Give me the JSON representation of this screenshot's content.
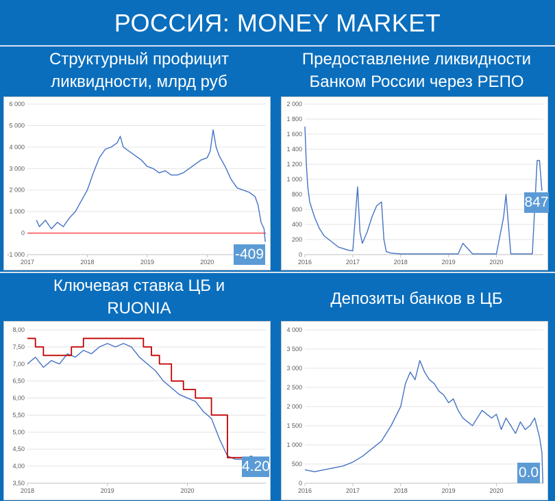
{
  "title": "РОССИЯ: MONEY MARKET",
  "colors": {
    "background": "#0a6ebd",
    "series": "#4472c4",
    "rate_line": "#c00000",
    "zero_line": "#ff0000",
    "badge": "#5b9bd5"
  },
  "panels": [
    {
      "title_line1": "Структурный профицит",
      "title_line2": "ликвидности, млрд руб",
      "badge": "-409"
    },
    {
      "title_line1": "Предоставление ликвидности",
      "title_line2": "Банком России через РЕПО",
      "badge": "847"
    },
    {
      "title_line1": "Ключевая ставка ЦБ и",
      "title_line2": "RUONIA",
      "badge": "4.20"
    },
    {
      "title_line1": "Депозиты банков в ЦБ",
      "title_line2": "",
      "badge": "0.0"
    }
  ],
  "chart_data": [
    {
      "type": "line",
      "xlim": [
        2017.0,
        2020.98
      ],
      "ylim": [
        -1000,
        6000
      ],
      "yticks": [
        "-1 000",
        "0",
        "1 000",
        "2 000",
        "3 000",
        "4 000",
        "5 000",
        "6 000"
      ],
      "xticks": [
        "2017",
        "2018",
        "2019",
        "2020"
      ],
      "reference_line": 0,
      "series": [
        {
          "x": [
            2017.15,
            2017.2,
            2017.3,
            2017.4,
            2017.5,
            2017.6,
            2017.7,
            2017.8,
            2017.9,
            2018.0,
            2018.05,
            2018.1,
            2018.2,
            2018.25,
            2018.3,
            2018.4,
            2018.5,
            2018.55,
            2018.6,
            2018.7,
            2018.8,
            2018.9,
            2019.0,
            2019.1,
            2019.2,
            2019.3,
            2019.4,
            2019.5,
            2019.6,
            2019.7,
            2019.8,
            2019.9,
            2020.0,
            2020.05,
            2020.1,
            2020.15,
            2020.2,
            2020.3,
            2020.4,
            2020.5,
            2020.6,
            2020.7,
            2020.75,
            2020.8,
            2020.85,
            2020.9,
            2020.95,
            2020.97
          ],
          "y": [
            600,
            300,
            600,
            200,
            500,
            300,
            700,
            1000,
            1500,
            2000,
            2400,
            2800,
            3500,
            3700,
            3900,
            4000,
            4200,
            4500,
            4000,
            3800,
            3600,
            3400,
            3100,
            3000,
            2800,
            2900,
            2700,
            2700,
            2800,
            3000,
            3200,
            3400,
            3500,
            3800,
            4800,
            4000,
            3600,
            3100,
            2500,
            2100,
            2000,
            1900,
            1800,
            1700,
            1300,
            500,
            200,
            -409
          ]
        }
      ]
    },
    {
      "type": "line",
      "xlim": [
        2016.0,
        2020.98
      ],
      "ylim": [
        0,
        2000
      ],
      "yticks": [
        "0",
        "200",
        "400",
        "600",
        "800",
        "1 000",
        "1 200",
        "1 400",
        "1 600",
        "1 800",
        "2 000"
      ],
      "xticks": [
        "2016",
        "2017",
        "2018",
        "2019",
        "2020"
      ],
      "series": [
        {
          "x": [
            2016.0,
            2016.03,
            2016.06,
            2016.1,
            2016.2,
            2016.3,
            2016.4,
            2016.5,
            2016.6,
            2016.7,
            2016.8,
            2016.9,
            2017.0,
            2017.1,
            2017.15,
            2017.2,
            2017.3,
            2017.4,
            2017.5,
            2017.6,
            2017.65,
            2017.7,
            2017.8,
            2018.0,
            2018.5,
            2019.0,
            2019.2,
            2019.3,
            2019.5,
            2020.0,
            2020.15,
            2020.2,
            2020.25,
            2020.3,
            2020.4,
            2020.5,
            2020.6,
            2020.7,
            2020.75,
            2020.8,
            2020.85,
            2020.9,
            2020.95
          ],
          "y": [
            1700,
            1200,
            900,
            700,
            500,
            350,
            250,
            200,
            150,
            100,
            80,
            60,
            50,
            900,
            300,
            150,
            300,
            500,
            650,
            700,
            200,
            40,
            20,
            10,
            10,
            10,
            10,
            150,
            10,
            10,
            500,
            800,
            400,
            10,
            10,
            10,
            10,
            10,
            10,
            620,
            1250,
            1250,
            847
          ]
        }
      ]
    },
    {
      "type": "line",
      "xlim": [
        2018.0,
        2020.98
      ],
      "ylim": [
        3.5,
        8.0
      ],
      "yticks": [
        "3,50",
        "4,00",
        "4,50",
        "5,00",
        "5,50",
        "6,00",
        "6,50",
        "7,00",
        "7,50",
        "8,00"
      ],
      "xticks": [
        "2018",
        "2019",
        "2020"
      ],
      "series": [
        {
          "x": [
            2018.0,
            2018.1,
            2018.2,
            2018.3,
            2018.4,
            2018.5,
            2018.6,
            2018.7,
            2018.8,
            2018.9,
            2019.0,
            2019.1,
            2019.2,
            2019.3,
            2019.4,
            2019.5,
            2019.6,
            2019.7,
            2019.8,
            2019.9,
            2020.0,
            2020.1,
            2020.2,
            2020.3,
            2020.4,
            2020.5,
            2020.6,
            2020.7,
            2020.8,
            2020.9,
            2020.95
          ],
          "y": [
            7.0,
            7.2,
            6.9,
            7.1,
            7.0,
            7.3,
            7.2,
            7.4,
            7.3,
            7.5,
            7.6,
            7.5,
            7.6,
            7.5,
            7.2,
            7.0,
            6.8,
            6.5,
            6.3,
            6.1,
            6.0,
            5.9,
            5.6,
            5.4,
            4.8,
            4.3,
            4.2,
            4.2,
            4.3,
            4.1,
            4.2
          ]
        },
        {
          "x": [
            2018.0,
            2018.1,
            2018.2,
            2018.55,
            2018.7,
            2019.0,
            2019.45,
            2019.55,
            2019.65,
            2019.8,
            2019.95,
            2020.1,
            2020.3,
            2020.5,
            2020.98
          ],
          "y": [
            7.75,
            7.5,
            7.25,
            7.5,
            7.75,
            7.75,
            7.5,
            7.25,
            7.0,
            6.5,
            6.25,
            6.0,
            5.5,
            4.25,
            4.25
          ]
        }
      ]
    },
    {
      "type": "line",
      "xlim": [
        2016.0,
        2020.98
      ],
      "ylim": [
        0,
        4000
      ],
      "yticks": [
        "0",
        "500",
        "1 000",
        "1 500",
        "2 000",
        "2 500",
        "3 000",
        "3 500",
        "4 000"
      ],
      "xticks": [
        "2016",
        "2017",
        "2018",
        "2019",
        "2020"
      ],
      "series": [
        {
          "x": [
            2016.0,
            2016.2,
            2016.4,
            2016.6,
            2016.8,
            2017.0,
            2017.2,
            2017.4,
            2017.6,
            2017.8,
            2018.0,
            2018.1,
            2018.2,
            2018.3,
            2018.4,
            2018.5,
            2018.6,
            2018.7,
            2018.8,
            2018.9,
            2019.0,
            2019.1,
            2019.2,
            2019.3,
            2019.4,
            2019.5,
            2019.6,
            2019.7,
            2019.8,
            2019.9,
            2020.0,
            2020.1,
            2020.2,
            2020.3,
            2020.4,
            2020.5,
            2020.6,
            2020.7,
            2020.8,
            2020.9,
            2020.95,
            2020.97
          ],
          "y": [
            350,
            300,
            350,
            400,
            450,
            550,
            700,
            900,
            1100,
            1500,
            2000,
            2600,
            2900,
            2700,
            3200,
            2900,
            2700,
            2600,
            2400,
            2300,
            2100,
            2200,
            1900,
            1700,
            1600,
            1500,
            1700,
            1900,
            1800,
            1700,
            1800,
            1400,
            1700,
            1500,
            1300,
            1600,
            1400,
            1500,
            1700,
            1200,
            800,
            0
          ]
        }
      ]
    }
  ]
}
